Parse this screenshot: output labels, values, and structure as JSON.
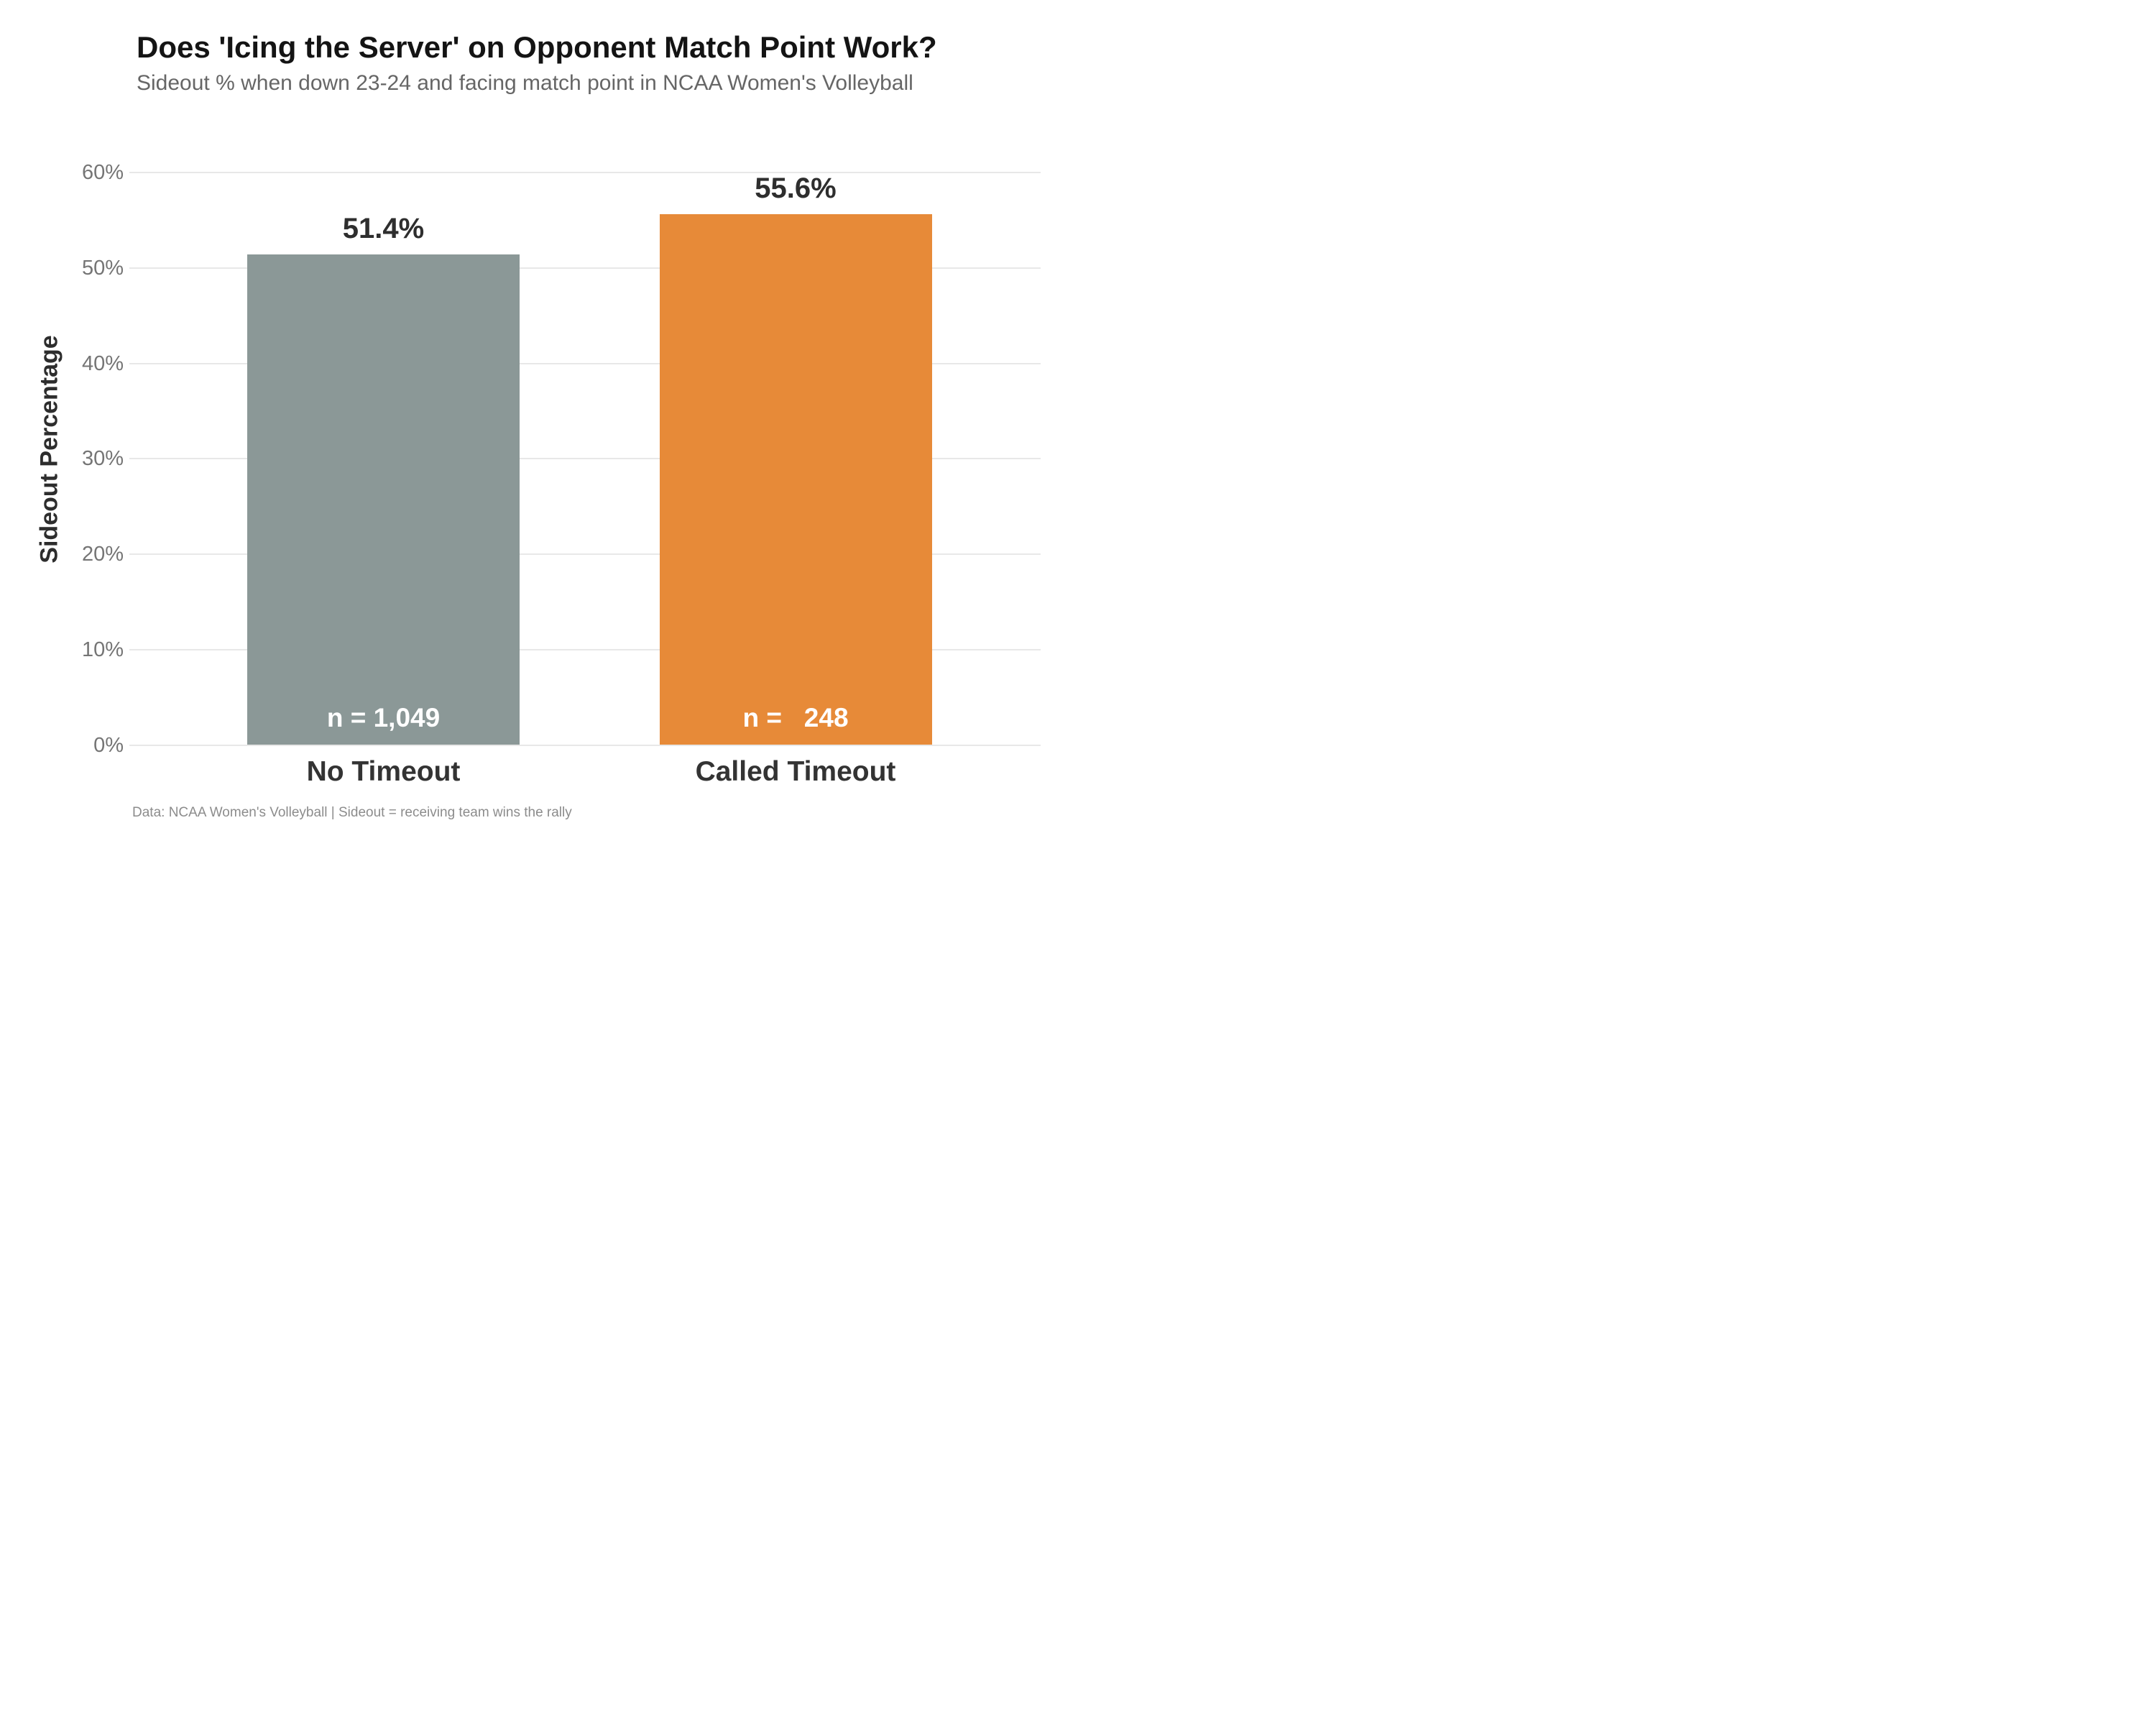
{
  "chart_data": {
    "type": "bar",
    "title": "Does 'Icing the Server' on Opponent Match Point Work?",
    "subtitle": "Sideout % when down 23-24 and facing match point in NCAA Women's Volleyball",
    "ylabel": "Sideout Percentage",
    "xlabel": "",
    "caption": "Data: NCAA Women's Volleyball | Sideout = receiving team wins the rally",
    "categories": [
      "No Timeout",
      "Called Timeout"
    ],
    "values": [
      51.4,
      55.6
    ],
    "value_labels": [
      "51.4%",
      "55.6%"
    ],
    "sample_sizes": [
      1049,
      248
    ],
    "sample_labels": [
      "n = 1,049",
      "n =   248"
    ],
    "bar_colors": [
      "#8B9897",
      "#E78A38"
    ],
    "ylim": [
      0,
      60
    ],
    "yticks": [
      "0%",
      "10%",
      "20%",
      "30%",
      "40%",
      "50%",
      "60%"
    ],
    "grid": true,
    "legend": false
  }
}
